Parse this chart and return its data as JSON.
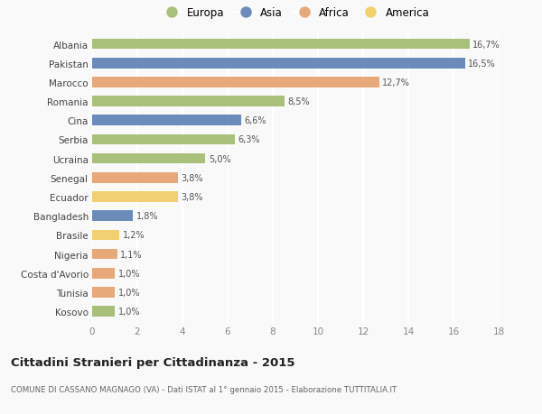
{
  "countries": [
    "Albania",
    "Pakistan",
    "Marocco",
    "Romania",
    "Cina",
    "Serbia",
    "Ucraina",
    "Senegal",
    "Ecuador",
    "Bangladesh",
    "Brasile",
    "Nigeria",
    "Costa d'Avorio",
    "Tunisia",
    "Kosovo"
  ],
  "values": [
    16.7,
    16.5,
    12.7,
    8.5,
    6.6,
    6.3,
    5.0,
    3.8,
    3.8,
    1.8,
    1.2,
    1.1,
    1.0,
    1.0,
    1.0
  ],
  "labels": [
    "16,7%",
    "16,5%",
    "12,7%",
    "8,5%",
    "6,6%",
    "6,3%",
    "5,0%",
    "3,8%",
    "3,8%",
    "1,8%",
    "1,2%",
    "1,1%",
    "1,0%",
    "1,0%",
    "1,0%"
  ],
  "continents": [
    "Europa",
    "Asia",
    "Africa",
    "Europa",
    "Asia",
    "Europa",
    "Europa",
    "Africa",
    "America",
    "Asia",
    "America",
    "Africa",
    "Africa",
    "Africa",
    "Europa"
  ],
  "colors": {
    "Europa": "#a8c07a",
    "Asia": "#6b8cba",
    "Africa": "#e8a97a",
    "America": "#f0d070"
  },
  "legend_order": [
    "Europa",
    "Asia",
    "Africa",
    "America"
  ],
  "title": "Cittadini Stranieri per Cittadinanza - 2015",
  "subtitle": "COMUNE DI CASSANO MAGNAGO (VA) - Dati ISTAT al 1° gennaio 2015 - Elaborazione TUTTITALIA.IT",
  "xlim": [
    0,
    18
  ],
  "xticks": [
    0,
    2,
    4,
    6,
    8,
    10,
    12,
    14,
    16,
    18
  ],
  "background_color": "#f9f9f9",
  "grid_color": "#ffffff",
  "bar_height": 0.55
}
